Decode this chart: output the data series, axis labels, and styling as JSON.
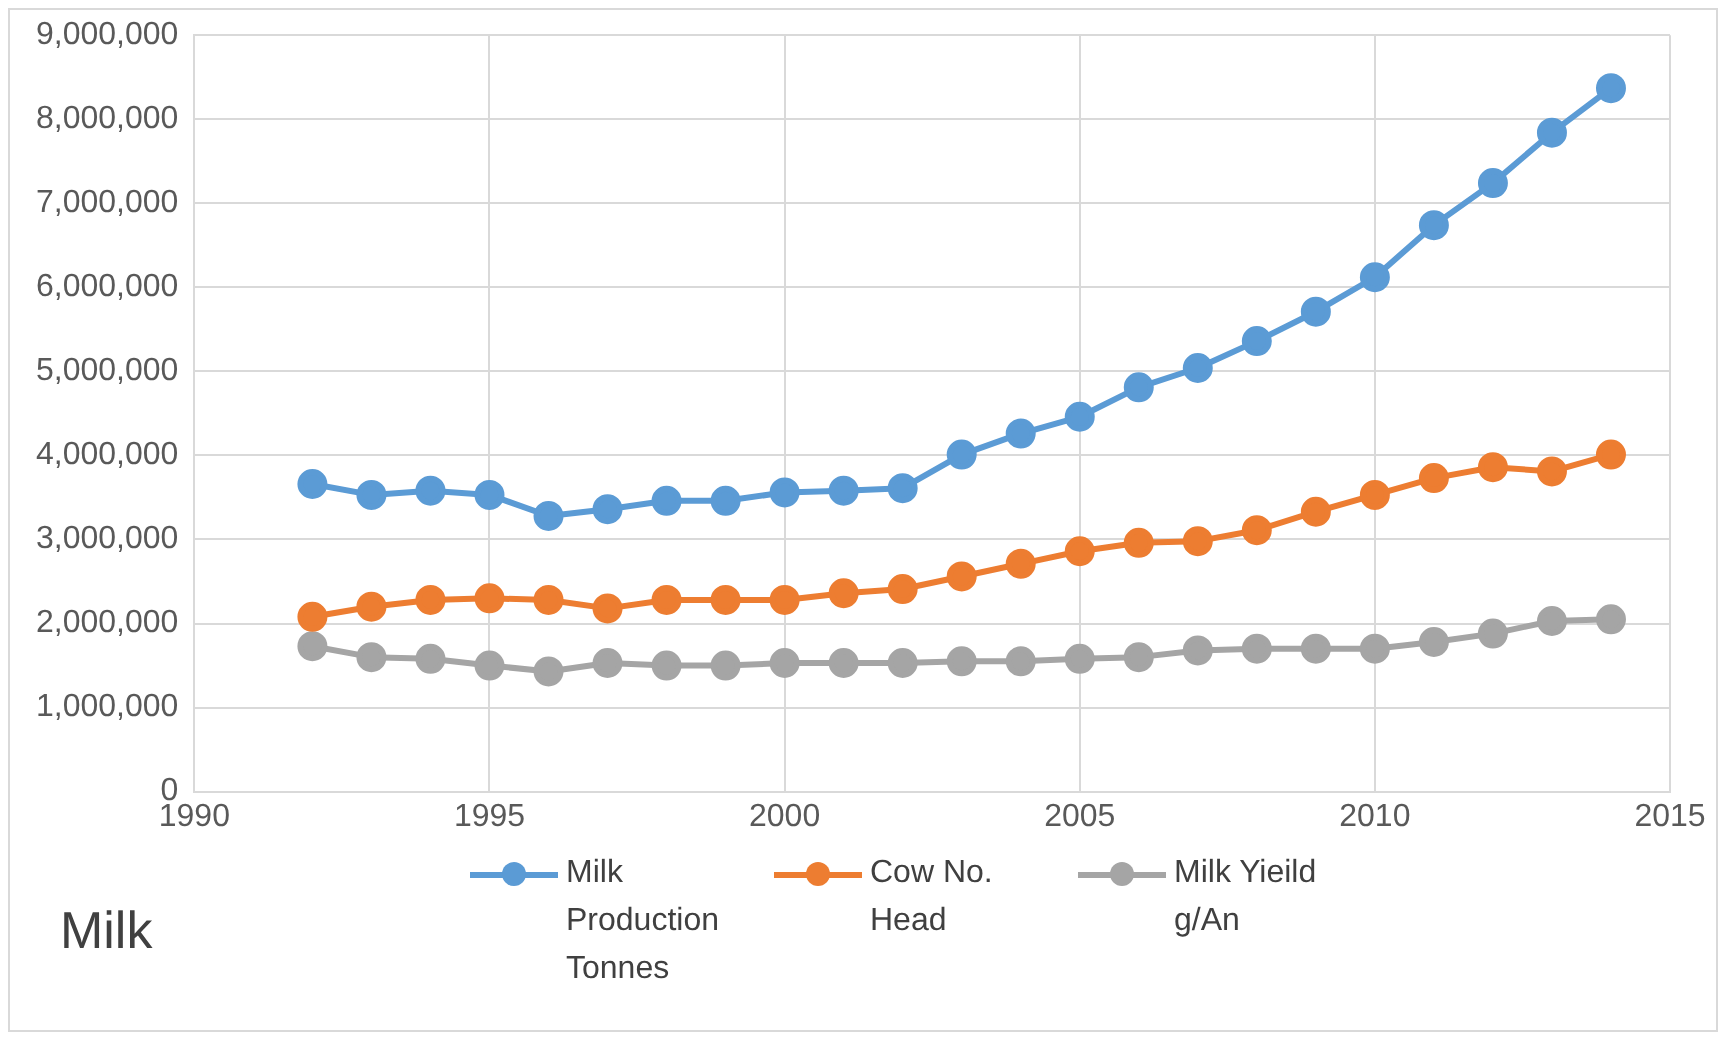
{
  "chart_data": {
    "type": "line",
    "title": "Milk",
    "x": [
      1992,
      1993,
      1994,
      1995,
      1996,
      1997,
      1998,
      1999,
      2000,
      2001,
      2002,
      2003,
      2004,
      2005,
      2006,
      2007,
      2008,
      2009,
      2010,
      2011,
      2012,
      2013,
      2014
    ],
    "series": [
      {
        "name": "Milk Production Tonnes",
        "color": "#5b9bd5",
        "values": [
          3660000,
          3530000,
          3580000,
          3530000,
          3280000,
          3360000,
          3460000,
          3460000,
          3560000,
          3580000,
          3610000,
          4010000,
          4260000,
          4460000,
          4810000,
          5040000,
          5360000,
          5710000,
          6120000,
          6740000,
          7240000,
          7840000,
          8370000
        ]
      },
      {
        "name": "Cow No. Head",
        "color": "#ed7d31",
        "values": [
          2080000,
          2200000,
          2280000,
          2300000,
          2280000,
          2180000,
          2280000,
          2280000,
          2280000,
          2360000,
          2410000,
          2560000,
          2710000,
          2860000,
          2960000,
          2980000,
          3110000,
          3330000,
          3530000,
          3730000,
          3860000,
          3810000,
          4010000
        ]
      },
      {
        "name": "Milk Yieild g/An",
        "color": "#a5a5a5",
        "values": [
          1730000,
          1600000,
          1580000,
          1500000,
          1430000,
          1530000,
          1500000,
          1500000,
          1530000,
          1530000,
          1530000,
          1550000,
          1550000,
          1580000,
          1600000,
          1680000,
          1700000,
          1700000,
          1700000,
          1780000,
          1880000,
          2030000,
          2050000
        ]
      }
    ],
    "xlim": [
      1990,
      2015
    ],
    "xticks": [
      1990,
      1995,
      2000,
      2005,
      2010,
      2015
    ],
    "ylim": [
      0,
      9000000
    ],
    "yticks": [
      0,
      {
        "value": 1000000,
        "label": "1,000,000"
      },
      {
        "value": 2000000,
        "label": "2,000,000"
      },
      {
        "value": 3000000,
        "label": "3,000,000"
      },
      {
        "value": 4000000,
        "label": "4,000,000"
      },
      {
        "value": 5000000,
        "label": "5,000,000"
      },
      {
        "value": 6000000,
        "label": "6,000,000"
      },
      {
        "value": 7000000,
        "label": "7,000,000"
      },
      {
        "value": 8000000,
        "label": "8,000,000"
      },
      {
        "value": 9000000,
        "label": "9,000,000"
      }
    ],
    "grid": true,
    "legend": "bottom",
    "marker": "circle",
    "line_style": "solid"
  }
}
